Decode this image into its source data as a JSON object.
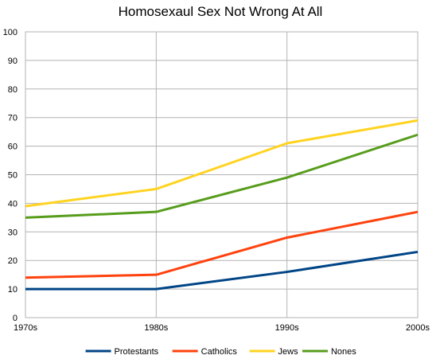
{
  "chart_data": {
    "type": "line",
    "title": "Homosexaul Sex Not Wrong At All",
    "xlabel": "",
    "ylabel": "",
    "categories": [
      "1970s",
      "1980s",
      "1990s",
      "2000s"
    ],
    "ylim": [
      0,
      100
    ],
    "yticks": [
      0,
      10,
      20,
      30,
      40,
      50,
      60,
      70,
      80,
      90,
      100
    ],
    "grid": true,
    "legend_position": "bottom",
    "series": [
      {
        "name": "Protestants",
        "color": "#004586",
        "values": [
          10,
          10,
          16,
          23
        ]
      },
      {
        "name": "Catholics",
        "color": "#ff420e",
        "values": [
          14,
          15,
          28,
          37
        ]
      },
      {
        "name": "Jews",
        "color": "#ffd320",
        "values": [
          39,
          45,
          61,
          69
        ]
      },
      {
        "name": "Nones",
        "color": "#579d1c",
        "values": [
          35,
          37,
          49,
          64
        ]
      }
    ]
  }
}
